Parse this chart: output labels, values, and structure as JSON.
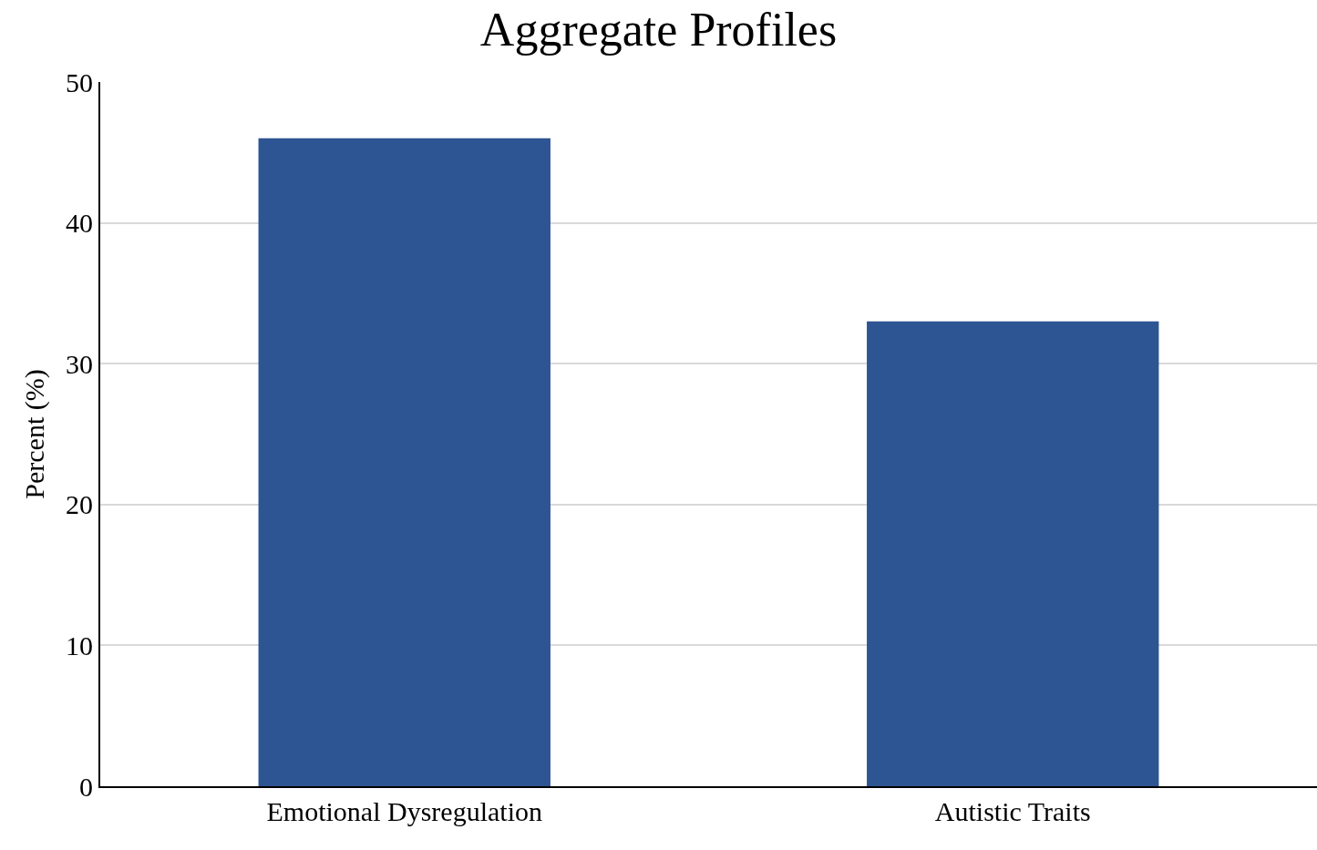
{
  "chart_data": {
    "type": "bar",
    "title": "Aggregate Profiles",
    "ylabel": "Percent (%)",
    "categories": [
      "Emotional Dysregulation",
      "Autistic Traits"
    ],
    "values": [
      46,
      33
    ],
    "color": "#2e5593",
    "ylim": [
      0,
      50
    ],
    "yticks": [
      0,
      10,
      20,
      30,
      40,
      50
    ],
    "grid": "y"
  }
}
